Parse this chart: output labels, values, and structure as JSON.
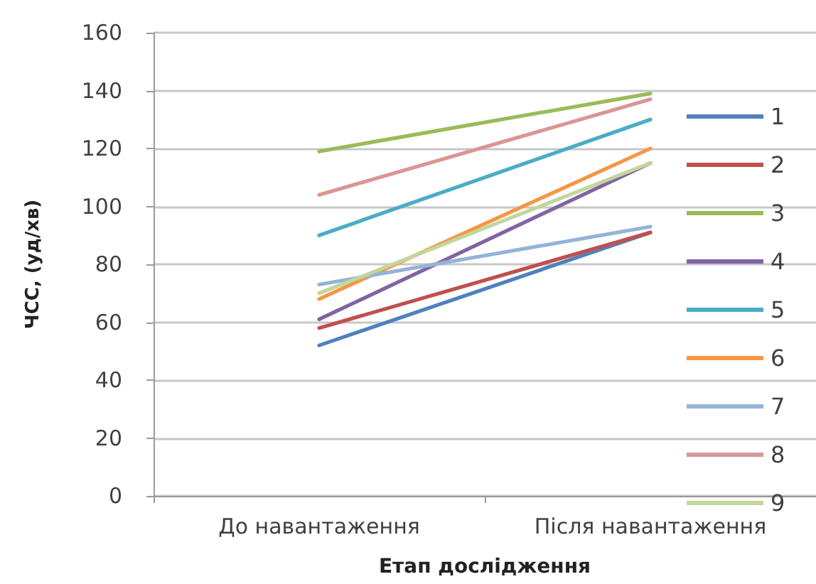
{
  "chart_data": {
    "type": "line",
    "categories": [
      "До навантаження",
      "Після навантаження"
    ],
    "xlabel": "Етап дослідження",
    "ylabel": "ЧСС, (уд/хв)",
    "ylim": [
      0,
      160
    ],
    "yticks": [
      0,
      20,
      40,
      60,
      80,
      100,
      120,
      140,
      160
    ],
    "grid": "y",
    "legend": "right",
    "marker": "none",
    "line_style": "solid",
    "series": [
      {
        "name": "1",
        "color": "#4f81bd",
        "values": [
          52,
          91
        ]
      },
      {
        "name": "2",
        "color": "#c0504d",
        "values": [
          58,
          91
        ]
      },
      {
        "name": "3",
        "color": "#9bbb59",
        "values": [
          119,
          139
        ]
      },
      {
        "name": "4",
        "color": "#8064a2",
        "values": [
          61,
          115
        ]
      },
      {
        "name": "5",
        "color": "#4bacc6",
        "values": [
          90,
          130
        ]
      },
      {
        "name": "6",
        "color": "#f79646",
        "values": [
          68,
          120
        ]
      },
      {
        "name": "7",
        "color": "#95b3d7",
        "values": [
          73,
          93
        ]
      },
      {
        "name": "8",
        "color": "#d99694",
        "values": [
          104,
          137
        ]
      },
      {
        "name": "9",
        "color": "#c3d69b",
        "values": [
          70,
          115
        ]
      }
    ]
  }
}
